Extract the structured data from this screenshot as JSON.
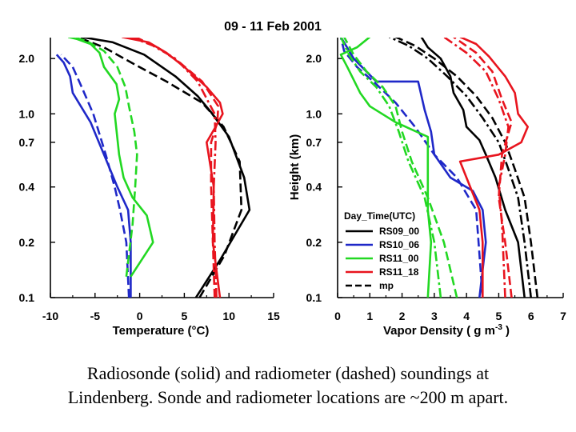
{
  "figure_title": "09 - 11 Feb 2001",
  "caption": {
    "line1": "Radiosonde (solid) and radiometer (dashed) soundings at",
    "line2": "Lindenberg. Sonde and radiometer locations are ~200 m apart."
  },
  "colors": {
    "RS09_00": "#000000",
    "RS10_06": "#1f28c8",
    "RS11_00": "#22d822",
    "RS11_18": "#e8141e",
    "mp": "#000000"
  },
  "chart_data": [
    {
      "type": "line",
      "id": "temperature",
      "xlabel": "Temperature (°C)",
      "ylabel": "",
      "xlim": [
        -10,
        15
      ],
      "ylim_km": [
        0.1,
        2.6
      ],
      "y_scale": "log",
      "x_ticks": [
        -10,
        -5,
        0,
        5,
        10,
        15
      ],
      "y_ticks": [
        0.1,
        0.2,
        0.4,
        0.7,
        1.0,
        2.0
      ],
      "y_tick_labels": [
        "0.1",
        "0.2",
        "0.4",
        "0.7",
        "1.0",
        "2.0"
      ],
      "grid": false,
      "series": [
        {
          "name": "RS09_00",
          "style": "solid",
          "points": [
            [
              6.3,
              0.1
            ],
            [
              9.0,
              0.16
            ],
            [
              12.3,
              0.3
            ],
            [
              11.7,
              0.45
            ],
            [
              10.0,
              0.75
            ],
            [
              8.0,
              1.02
            ],
            [
              6.5,
              1.25
            ],
            [
              4.0,
              1.6
            ],
            [
              0.5,
              2.1
            ],
            [
              -3.0,
              2.45
            ],
            [
              -6.5,
              2.62
            ]
          ]
        },
        {
          "name": "RS09_00",
          "style": "dashed",
          "points": [
            [
              6.7,
              0.1
            ],
            [
              9.5,
              0.17
            ],
            [
              11.4,
              0.3
            ],
            [
              11.2,
              0.55
            ],
            [
              9.4,
              0.85
            ],
            [
              7.0,
              1.15
            ],
            [
              3.0,
              1.5
            ],
            [
              -0.5,
              1.85
            ],
            [
              -4.0,
              2.3
            ],
            [
              -7.0,
              2.62
            ]
          ]
        },
        {
          "name": "RS10_06",
          "style": "solid",
          "points": [
            [
              -1.0,
              0.1
            ],
            [
              -1.0,
              0.2
            ],
            [
              -1.3,
              0.3
            ],
            [
              -2.5,
              0.4
            ],
            [
              -4.0,
              0.6
            ],
            [
              -5.5,
              0.9
            ],
            [
              -7.5,
              1.3
            ],
            [
              -7.8,
              1.6
            ],
            [
              -8.5,
              1.9
            ],
            [
              -9.3,
              2.1
            ]
          ]
        },
        {
          "name": "RS10_06",
          "style": "dashed",
          "points": [
            [
              -1.2,
              0.1
            ],
            [
              -1.5,
              0.2
            ],
            [
              -2.2,
              0.3
            ],
            [
              -2.8,
              0.4
            ],
            [
              -3.8,
              0.6
            ],
            [
              -5.2,
              1.0
            ],
            [
              -6.5,
              1.4
            ],
            [
              -7.5,
              1.8
            ],
            [
              -8.8,
              2.1
            ]
          ]
        },
        {
          "name": "RS11_00",
          "style": "solid",
          "points": [
            [
              -1.0,
              0.13
            ],
            [
              1.5,
              0.2
            ],
            [
              0.8,
              0.28
            ],
            [
              -0.8,
              0.35
            ],
            [
              -1.8,
              0.45
            ],
            [
              -2.3,
              0.6
            ],
            [
              -2.8,
              1.0
            ],
            [
              -2.3,
              1.2
            ],
            [
              -2.6,
              1.45
            ],
            [
              -4.0,
              1.8
            ],
            [
              -4.5,
              2.15
            ],
            [
              -5.5,
              2.4
            ],
            [
              -7.0,
              2.55
            ],
            [
              -8.0,
              2.62
            ]
          ]
        },
        {
          "name": "RS11_00",
          "style": "dashed",
          "points": [
            [
              -1.5,
              0.13
            ],
            [
              -0.8,
              0.25
            ],
            [
              -0.5,
              0.4
            ],
            [
              -0.3,
              0.6
            ],
            [
              -0.6,
              0.8
            ],
            [
              -1.2,
              1.1
            ],
            [
              -1.6,
              1.4
            ],
            [
              -2.5,
              1.8
            ],
            [
              -4.0,
              2.2
            ],
            [
              -6.0,
              2.5
            ],
            [
              -7.5,
              2.62
            ]
          ]
        },
        {
          "name": "RS11_18",
          "style": "solid",
          "points": [
            [
              9.0,
              0.1
            ],
            [
              8.2,
              0.2
            ],
            [
              8.3,
              0.4
            ],
            [
              7.5,
              0.7
            ],
            [
              8.5,
              0.85
            ],
            [
              9.3,
              1.0
            ],
            [
              9.0,
              1.15
            ],
            [
              7.5,
              1.4
            ],
            [
              5.0,
              1.8
            ],
            [
              3.0,
              2.15
            ],
            [
              1.0,
              2.45
            ],
            [
              -2.0,
              2.62
            ]
          ]
        },
        {
          "name": "RS11_18",
          "style": "dashed",
          "points": [
            [
              8.4,
              0.1
            ],
            [
              8.2,
              0.2
            ],
            [
              8.0,
              0.4
            ],
            [
              8.0,
              0.7
            ],
            [
              8.7,
              0.9
            ],
            [
              8.8,
              1.1
            ],
            [
              7.0,
              1.5
            ],
            [
              4.5,
              1.9
            ],
            [
              2.0,
              2.3
            ],
            [
              -0.5,
              2.62
            ]
          ]
        },
        {
          "name": "RS11_18",
          "style": "dashdot",
          "points": [
            [
              8.6,
              0.1
            ],
            [
              8.4,
              0.2
            ],
            [
              8.3,
              0.4
            ],
            [
              8.5,
              0.7
            ],
            [
              8.4,
              1.0
            ],
            [
              6.5,
              1.5
            ],
            [
              4.0,
              2.0
            ],
            [
              1.5,
              2.35
            ],
            [
              -1.0,
              2.62
            ]
          ]
        }
      ]
    },
    {
      "type": "line",
      "id": "vapor_density",
      "xlabel": "Vapor Density ( g m-3 )",
      "ylabel": "Height (km)",
      "xlim": [
        0,
        7
      ],
      "ylim_km": [
        0.1,
        2.6
      ],
      "y_scale": "log",
      "x_ticks": [
        0,
        1,
        2,
        3,
        4,
        5,
        6,
        7
      ],
      "y_ticks": [
        0.1,
        0.2,
        0.4,
        0.7,
        1.0,
        2.0
      ],
      "y_tick_labels": [
        "0.1",
        "0.2",
        "0.4",
        "0.7",
        "1.0",
        "2.0"
      ],
      "grid": false,
      "legend": {
        "title": "Day_Time(UTC)",
        "placement": "lower-center",
        "entries": [
          {
            "label": "RS09_00",
            "color_key": "RS09_00",
            "style": "solid"
          },
          {
            "label": "RS10_06",
            "color_key": "RS10_06",
            "style": "solid"
          },
          {
            "label": "RS11_00",
            "color_key": "RS11_00",
            "style": "solid"
          },
          {
            "label": "RS11_18",
            "color_key": "RS11_18",
            "style": "solid"
          },
          {
            "label": "mp",
            "color_key": "mp",
            "style": "dashed"
          }
        ]
      },
      "series": [
        {
          "name": "RS09_00",
          "style": "solid",
          "points": [
            [
              5.8,
              0.1
            ],
            [
              5.6,
              0.2
            ],
            [
              5.2,
              0.3
            ],
            [
              4.9,
              0.45
            ],
            [
              4.6,
              0.6
            ],
            [
              4.4,
              0.72
            ],
            [
              4.0,
              0.85
            ],
            [
              3.9,
              1.05
            ],
            [
              3.6,
              1.3
            ],
            [
              3.5,
              1.6
            ],
            [
              3.2,
              2.0
            ],
            [
              2.8,
              2.3
            ],
            [
              2.6,
              2.62
            ]
          ]
        },
        {
          "name": "RS09_00",
          "style": "dashed",
          "points": [
            [
              6.2,
              0.1
            ],
            [
              6.0,
              0.2
            ],
            [
              5.8,
              0.35
            ],
            [
              5.5,
              0.5
            ],
            [
              5.2,
              0.7
            ],
            [
              4.8,
              0.95
            ],
            [
              4.3,
              1.25
            ],
            [
              3.7,
              1.6
            ],
            [
              3.0,
              2.0
            ],
            [
              2.4,
              2.35
            ],
            [
              1.8,
              2.62
            ]
          ]
        },
        {
          "name": "RS09_00",
          "style": "dashdot",
          "points": [
            [
              6.0,
              0.1
            ],
            [
              5.8,
              0.2
            ],
            [
              5.6,
              0.35
            ],
            [
              5.3,
              0.5
            ],
            [
              5.0,
              0.7
            ],
            [
              4.5,
              0.95
            ],
            [
              4.0,
              1.25
            ],
            [
              3.4,
              1.6
            ],
            [
              2.8,
              2.0
            ],
            [
              2.2,
              2.35
            ],
            [
              1.6,
              2.62
            ]
          ]
        },
        {
          "name": "RS10_06",
          "style": "solid",
          "points": [
            [
              4.4,
              0.1
            ],
            [
              4.6,
              0.2
            ],
            [
              4.5,
              0.3
            ],
            [
              4.2,
              0.38
            ],
            [
              3.5,
              0.45
            ],
            [
              3.0,
              0.6
            ],
            [
              2.9,
              0.8
            ],
            [
              2.7,
              1.05
            ],
            [
              2.5,
              1.5
            ],
            [
              1.2,
              1.5
            ],
            [
              0.5,
              2.0
            ],
            [
              0.1,
              2.62
            ]
          ]
        },
        {
          "name": "RS10_06",
          "style": "dashed",
          "points": [
            [
              4.5,
              0.1
            ],
            [
              4.3,
              0.3
            ],
            [
              3.7,
              0.45
            ],
            [
              3.0,
              0.6
            ],
            [
              2.4,
              0.85
            ],
            [
              1.8,
              1.15
            ],
            [
              1.2,
              1.45
            ],
            [
              0.6,
              1.8
            ],
            [
              0.2,
              2.2
            ],
            [
              0.1,
              2.62
            ]
          ]
        },
        {
          "name": "RS11_00",
          "style": "solid",
          "points": [
            [
              2.8,
              0.1
            ],
            [
              2.9,
              0.2
            ],
            [
              2.8,
              0.3
            ],
            [
              2.8,
              0.4
            ],
            [
              2.8,
              0.75
            ],
            [
              1.8,
              0.9
            ],
            [
              1.0,
              1.1
            ],
            [
              0.7,
              1.3
            ],
            [
              0.3,
              1.8
            ],
            [
              0.1,
              2.1
            ],
            [
              0.6,
              2.3
            ],
            [
              1.0,
              2.62
            ]
          ]
        },
        {
          "name": "RS11_00",
          "style": "dashed",
          "points": [
            [
              3.7,
              0.1
            ],
            [
              3.3,
              0.2
            ],
            [
              2.8,
              0.35
            ],
            [
              2.3,
              0.55
            ],
            [
              2.0,
              0.8
            ],
            [
              1.8,
              1.1
            ],
            [
              1.4,
              1.4
            ],
            [
              0.9,
              1.7
            ],
            [
              0.5,
              2.1
            ],
            [
              0.2,
              2.62
            ]
          ]
        },
        {
          "name": "RS11_00",
          "style": "dashdot",
          "points": [
            [
              3.2,
              0.1
            ],
            [
              3.0,
              0.2
            ],
            [
              2.7,
              0.35
            ],
            [
              2.2,
              0.55
            ],
            [
              1.9,
              0.8
            ],
            [
              1.6,
              1.1
            ],
            [
              1.2,
              1.4
            ],
            [
              0.7,
              1.7
            ],
            [
              0.35,
              2.1
            ],
            [
              0.1,
              2.62
            ]
          ]
        },
        {
          "name": "RS11_18",
          "style": "solid",
          "points": [
            [
              4.5,
              0.1
            ],
            [
              4.5,
              0.2
            ],
            [
              4.4,
              0.3
            ],
            [
              4.0,
              0.45
            ],
            [
              3.8,
              0.55
            ],
            [
              5.0,
              0.6
            ],
            [
              5.7,
              0.7
            ],
            [
              5.9,
              0.85
            ],
            [
              5.6,
              1.0
            ],
            [
              5.5,
              1.3
            ],
            [
              5.2,
              1.6
            ],
            [
              4.7,
              2.05
            ],
            [
              4.3,
              2.4
            ],
            [
              3.8,
              2.62
            ]
          ]
        },
        {
          "name": "RS11_18",
          "style": "dashed",
          "points": [
            [
              5.4,
              0.1
            ],
            [
              5.2,
              0.2
            ],
            [
              5.0,
              0.35
            ],
            [
              5.1,
              0.6
            ],
            [
              5.4,
              0.9
            ],
            [
              5.1,
              1.2
            ],
            [
              4.8,
              1.7
            ],
            [
              4.3,
              2.15
            ],
            [
              3.6,
              2.62
            ]
          ]
        },
        {
          "name": "RS11_18",
          "style": "dashdot",
          "points": [
            [
              5.2,
              0.1
            ],
            [
              5.1,
              0.25
            ],
            [
              5.0,
              0.4
            ],
            [
              5.2,
              0.6
            ],
            [
              5.3,
              0.85
            ],
            [
              5.0,
              1.2
            ],
            [
              4.6,
              1.7
            ],
            [
              4.0,
              2.15
            ],
            [
              3.3,
              2.62
            ]
          ]
        }
      ]
    }
  ]
}
